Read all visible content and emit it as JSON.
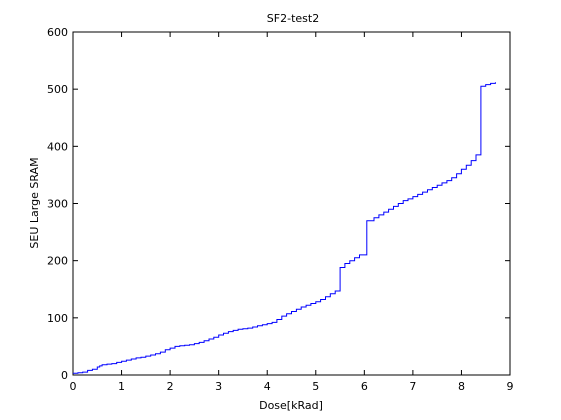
{
  "chart_data": {
    "type": "line",
    "title": "SF2-test2",
    "xlabel": "Dose[kRad]",
    "ylabel": "SEU Large SRAM",
    "xlim": [
      0,
      9
    ],
    "ylim": [
      0,
      600
    ],
    "xticks": [
      0,
      1,
      2,
      3,
      4,
      5,
      6,
      7,
      8,
      9
    ],
    "yticks": [
      0,
      100,
      200,
      300,
      400,
      500,
      600
    ],
    "grid": false,
    "line_color": "#0000ff",
    "series": [
      {
        "step": true,
        "x": [
          0.0,
          0.1,
          0.2,
          0.3,
          0.4,
          0.5,
          0.55,
          0.6,
          0.7,
          0.8,
          0.9,
          1.0,
          1.1,
          1.2,
          1.3,
          1.4,
          1.5,
          1.6,
          1.7,
          1.8,
          1.9,
          2.0,
          2.1,
          2.2,
          2.3,
          2.4,
          2.5,
          2.6,
          2.7,
          2.8,
          2.9,
          3.0,
          3.1,
          3.2,
          3.3,
          3.4,
          3.5,
          3.6,
          3.7,
          3.8,
          3.9,
          4.0,
          4.1,
          4.2,
          4.3,
          4.4,
          4.5,
          4.6,
          4.7,
          4.8,
          4.9,
          5.0,
          5.1,
          5.2,
          5.3,
          5.4,
          5.5,
          5.5,
          5.6,
          5.7,
          5.8,
          5.9,
          6.05,
          6.05,
          6.2,
          6.3,
          6.4,
          6.5,
          6.6,
          6.7,
          6.8,
          6.9,
          7.0,
          7.1,
          7.2,
          7.3,
          7.4,
          7.5,
          7.6,
          7.7,
          7.8,
          7.9,
          8.0,
          8.1,
          8.2,
          8.3,
          8.4,
          8.4,
          8.5,
          8.6,
          8.7
        ],
        "y": [
          3,
          4,
          5,
          8,
          10,
          14,
          16,
          18,
          19,
          20,
          22,
          24,
          26,
          28,
          30,
          31,
          33,
          35,
          37,
          40,
          44,
          47,
          50,
          51,
          52,
          53,
          55,
          57,
          60,
          63,
          66,
          70,
          73,
          76,
          78,
          80,
          81,
          82,
          84,
          86,
          88,
          90,
          92,
          97,
          103,
          107,
          111,
          115,
          119,
          122,
          125,
          128,
          132,
          137,
          142,
          147,
          150,
          188,
          195,
          200,
          205,
          210,
          215,
          270,
          275,
          280,
          285,
          290,
          295,
          300,
          305,
          308,
          312,
          316,
          320,
          324,
          328,
          332,
          336,
          340,
          345,
          352,
          360,
          367,
          375,
          385,
          395,
          505,
          508,
          510,
          512
        ]
      }
    ]
  }
}
